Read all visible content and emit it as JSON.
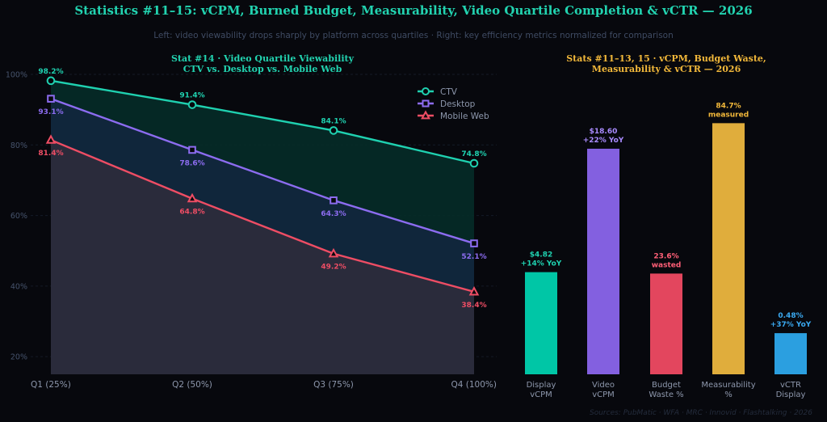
{
  "title": "Statistics #11–15: vCPM, Burned Budget, Measurability, Video Quartile Completion & vCTR — 2026",
  "subtitle": "Left: video viewability drops sharply by platform across quartiles  ·  Right: key efficiency metrics normalized for comparison",
  "source": "Sources: PubMatic · WFA · MRC · Innovid · Flashtalking · 2026",
  "chart_data": [
    {
      "type": "line",
      "title": "Stat #14 · Video Quartile Viewability\nCTV vs. Desktop vs. Mobile Web",
      "title_lines": [
        "Stat #14 · Video Quartile Viewability",
        "CTV vs. Desktop vs. Mobile Web"
      ],
      "categories": [
        "Q1 (25%)",
        "Q2 (50%)",
        "Q3 (75%)",
        "Q4 (100%)"
      ],
      "ylim": [
        15,
        100
      ],
      "yticks": [
        20,
        40,
        60,
        80,
        100
      ],
      "ytick_labels": [
        "20%",
        "40%",
        "60%",
        "80%",
        "100%"
      ],
      "grid": true,
      "legend": "top-right",
      "series": [
        {
          "name": "CTV",
          "values": [
            98.2,
            91.4,
            84.1,
            74.8
          ],
          "labels": [
            "98.2%",
            "91.4%",
            "84.1%",
            "74.8%"
          ],
          "color": "#1fd1b0",
          "marker": "circle",
          "label_pos": "above"
        },
        {
          "name": "Desktop",
          "values": [
            93.1,
            78.6,
            64.3,
            52.1
          ],
          "labels": [
            "93.1%",
            "78.6%",
            "64.3%",
            "52.1%"
          ],
          "color": "#8c6cf0",
          "marker": "square",
          "label_pos": "below"
        },
        {
          "name": "Mobile Web",
          "values": [
            81.4,
            64.8,
            49.2,
            38.4
          ],
          "labels": [
            "81.4%",
            "64.8%",
            "49.2%",
            "38.4%"
          ],
          "color": "#ee4d64",
          "marker": "triangle",
          "label_pos": "below"
        }
      ]
    },
    {
      "type": "bar",
      "title": "Stats #11–13, 15 · vCPM, Budget Waste,\nMeasurability & vCTR — 2026",
      "title_lines": [
        "Stats #11–13, 15 · vCPM, Budget Waste,",
        "Measurability & vCTR — 2026"
      ],
      "ylim": [
        0,
        100
      ],
      "categories": [
        {
          "lines": [
            "Display",
            "vCPM"
          ]
        },
        {
          "lines": [
            "Video",
            "vCPM"
          ]
        },
        {
          "lines": [
            "Budget",
            "Waste %"
          ]
        },
        {
          "lines": [
            "Measurability",
            "%"
          ]
        },
        {
          "lines": [
            "vCTR",
            "Display"
          ]
        }
      ],
      "values": [
        36,
        79.5,
        35.5,
        88.5,
        14.5
      ],
      "colors": [
        "#00c6a6",
        "#8360e0",
        "#e3465e",
        "#e0ad3c",
        "#2b9fe0"
      ],
      "bar_labels": [
        [
          "$4.82",
          "+14% YoY"
        ],
        [
          "$18.60",
          "+22% YoY"
        ],
        [
          "23.6%",
          "wasted"
        ],
        [
          "84.7%",
          "measured"
        ],
        [
          "0.48%",
          "+37% YoY"
        ]
      ],
      "label_colors": [
        "#1fd1b0",
        "#a98bff",
        "#ff5f77",
        "#f2b83a",
        "#3aa9f0"
      ]
    }
  ]
}
